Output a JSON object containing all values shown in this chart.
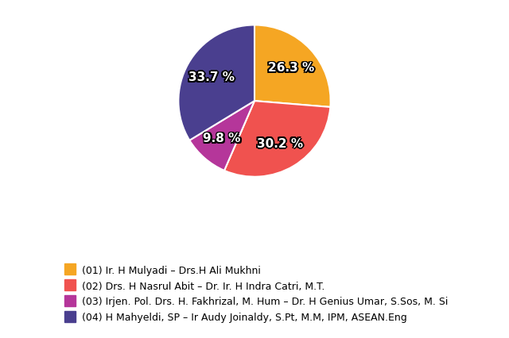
{
  "slices": [
    26.3,
    30.2,
    9.8,
    33.7
  ],
  "colors": [
    "#F5A623",
    "#F0524F",
    "#B5369A",
    "#4A3F8F"
  ],
  "labels": [
    "26.3 %",
    "30.2 %",
    "9.8 %",
    "33.7 %"
  ],
  "legend_labels": [
    "(01) Ir. H Mulyadi – Drs.H Ali Mukhni",
    "(02) Drs. H Nasrul Abit – Dr. Ir. H Indra Catri, M.T.",
    "(03) Irjen. Pol. Drs. H. Fakhrizal, M. Hum – Dr. H Genius Umar, S.Sos, M. Si",
    "(04) H Mahyeldi, SP – Ir Audy Joinaldy, S.Pt, M.M, IPM, ASEAN.Eng"
  ],
  "startangle": 90,
  "background_color": "#FFFFFF",
  "label_color": "#FFFFFF",
  "label_fontsize": 11,
  "legend_fontsize": 9
}
